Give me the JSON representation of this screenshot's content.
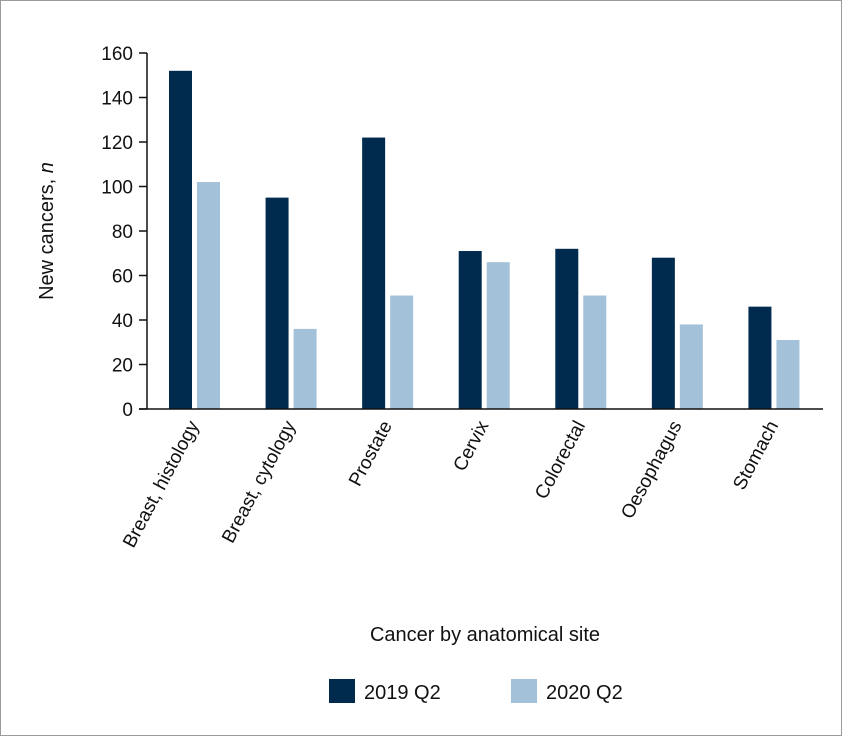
{
  "chart_data": {
    "type": "bar",
    "categories": [
      "Breast, histology",
      "Breast, cytology",
      "Prostate",
      "Cervix",
      "Colorectal",
      "Oesophagus",
      "Stomach"
    ],
    "series": [
      {
        "name": "2019 Q2",
        "color": "#002b4f",
        "values": [
          152,
          95,
          122,
          71,
          72,
          68,
          46
        ]
      },
      {
        "name": "2020 Q2",
        "color": "#a3c1d9",
        "values": [
          102,
          36,
          51,
          66,
          51,
          38,
          31
        ]
      }
    ],
    "ylabel_main": "New cancers, ",
    "ylabel_italic": "n",
    "xlabel": "Cancer by anatomical site",
    "ylim": [
      0,
      160
    ],
    "yticks": [
      0,
      20,
      40,
      60,
      80,
      100,
      120,
      140,
      160
    ],
    "grid": false,
    "legend": "bottom"
  }
}
